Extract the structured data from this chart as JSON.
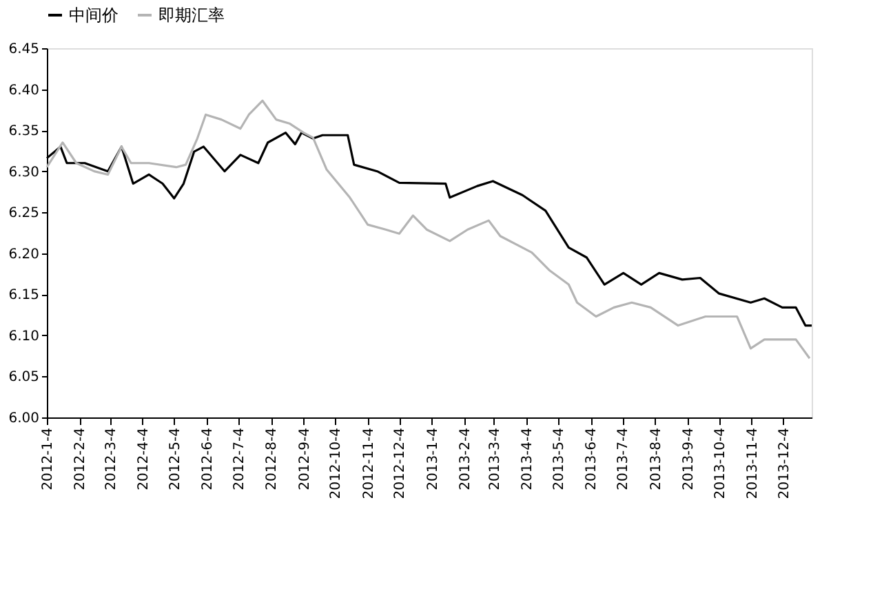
{
  "chart_data": {
    "type": "line",
    "legend": "top",
    "grid": false,
    "line_style": "solid",
    "marker": "none",
    "ylim": [
      6.0,
      6.45
    ],
    "yticks": [
      {
        "value": 6.0,
        "label": "6.00"
      },
      6.05,
      {
        "value": 6.1,
        "label": "6.10"
      },
      6.15,
      {
        "value": 6.2,
        "label": "6.20"
      },
      6.25,
      {
        "value": 6.3,
        "label": "6.30"
      },
      6.35,
      {
        "value": 6.4,
        "label": "6.40"
      },
      6.45
    ],
    "xlim": [
      "2012-01-04",
      "2013-12-31"
    ],
    "xticks": [
      {
        "value": "2012-01-04",
        "label": "2012-1-4"
      },
      {
        "value": "2012-02-04",
        "label": "2012-2-4"
      },
      {
        "value": "2012-03-04",
        "label": "2012-3-4"
      },
      {
        "value": "2012-04-04",
        "label": "2012-4-4"
      },
      {
        "value": "2012-05-04",
        "label": "2012-5-4"
      },
      {
        "value": "2012-06-04",
        "label": "2012-6-4"
      },
      {
        "value": "2012-07-04",
        "label": "2012-7-4"
      },
      {
        "value": "2012-08-04",
        "label": "2012-8-4"
      },
      {
        "value": "2012-09-04",
        "label": "2012-9-4"
      },
      {
        "value": "2012-10-04",
        "label": "2012-10-4"
      },
      {
        "value": "2012-11-04",
        "label": "2012-11-4"
      },
      {
        "value": "2012-12-04",
        "label": "2012-12-4"
      },
      {
        "value": "2013-01-04",
        "label": "2013-1-4"
      },
      {
        "value": "2013-02-04",
        "label": "2013-2-4"
      },
      {
        "value": "2013-03-04",
        "label": "2013-3-4"
      },
      {
        "value": "2013-04-04",
        "label": "2013-4-4"
      },
      {
        "value": "2013-05-04",
        "label": "2013-5-4"
      },
      {
        "value": "2013-06-04",
        "label": "2013-6-4"
      },
      {
        "value": "2013-07-04",
        "label": "2013-7-4"
      },
      {
        "value": "2013-08-04",
        "label": "2013-8-4"
      },
      {
        "value": "2013-09-04",
        "label": "2013-9-4"
      },
      {
        "value": "2013-10-04",
        "label": "2013-10-4"
      },
      {
        "value": "2013-11-04",
        "label": "2013-11-4"
      },
      {
        "value": "2013-12-04",
        "label": "2013-12-4"
      }
    ],
    "series": [
      {
        "name": "中间价",
        "color": "#000000",
        "x": [
          "2012-01-04",
          "2012-01-17",
          "2012-01-23",
          "2012-02-09",
          "2012-03-02",
          "2012-03-15",
          "2012-03-26",
          "2012-04-10",
          "2012-04-23",
          "2012-05-04",
          "2012-05-13",
          "2012-05-23",
          "2012-06-01",
          "2012-06-21",
          "2012-07-06",
          "2012-07-23",
          "2012-08-01",
          "2012-08-18",
          "2012-08-27",
          "2012-09-02",
          "2012-09-13",
          "2012-09-22",
          "2012-10-16",
          "2012-10-22",
          "2012-11-13",
          "2012-12-04",
          "2013-01-17",
          "2013-01-21",
          "2013-02-16",
          "2013-03-03",
          "2013-03-31",
          "2013-04-22",
          "2013-05-14",
          "2013-05-31",
          "2013-06-17",
          "2013-07-05",
          "2013-07-22",
          "2013-08-08",
          "2013-08-30",
          "2013-09-16",
          "2013-10-04",
          "2013-11-03",
          "2013-11-16",
          "2013-12-03",
          "2013-12-16",
          "2013-12-25",
          "2013-12-31"
        ],
        "values": [
          6.316,
          6.33,
          6.31,
          6.31,
          6.3,
          6.33,
          6.285,
          6.296,
          6.285,
          6.267,
          6.285,
          6.324,
          6.33,
          6.3,
          6.32,
          6.31,
          6.335,
          6.347,
          6.333,
          6.347,
          6.34,
          6.344,
          6.344,
          6.308,
          6.3,
          6.286,
          6.285,
          6.268,
          6.282,
          6.288,
          6.271,
          6.252,
          6.207,
          6.195,
          6.162,
          6.176,
          6.162,
          6.176,
          6.168,
          6.17,
          6.151,
          6.14,
          6.145,
          6.134,
          6.134,
          6.112,
          6.112
        ]
      },
      {
        "name": "即期汇率",
        "color": "#b4b4b4",
        "x": [
          "2012-01-04",
          "2012-01-19",
          "2012-02-01",
          "2012-02-18",
          "2012-03-02",
          "2012-03-15",
          "2012-03-24",
          "2012-04-10",
          "2012-05-06",
          "2012-05-15",
          "2012-05-26",
          "2012-06-03",
          "2012-06-18",
          "2012-07-06",
          "2012-07-14",
          "2012-07-27",
          "2012-08-09",
          "2012-08-22",
          "2012-09-04",
          "2012-09-13",
          "2012-09-26",
          "2012-10-18",
          "2012-11-04",
          "2012-11-21",
          "2012-12-04",
          "2012-12-17",
          "2012-12-30",
          "2013-01-21",
          "2013-02-07",
          "2013-02-27",
          "2013-03-10",
          "2013-04-09",
          "2013-04-26",
          "2013-05-14",
          "2013-05-22",
          "2013-06-09",
          "2013-06-26",
          "2013-07-13",
          "2013-07-31",
          "2013-08-26",
          "2013-09-21",
          "2013-10-21",
          "2013-11-03",
          "2013-11-16",
          "2013-12-16",
          "2013-12-29"
        ],
        "values": [
          6.305,
          6.335,
          6.31,
          6.3,
          6.296,
          6.33,
          6.31,
          6.31,
          6.305,
          6.308,
          6.34,
          6.369,
          6.363,
          6.352,
          6.369,
          6.386,
          6.363,
          6.358,
          6.347,
          6.341,
          6.302,
          6.268,
          6.235,
          6.229,
          6.224,
          6.246,
          6.229,
          6.215,
          6.229,
          6.24,
          6.221,
          6.201,
          6.179,
          6.162,
          6.14,
          6.123,
          6.134,
          6.14,
          6.134,
          6.112,
          6.123,
          6.123,
          6.084,
          6.095,
          6.095,
          6.072
        ]
      }
    ]
  }
}
